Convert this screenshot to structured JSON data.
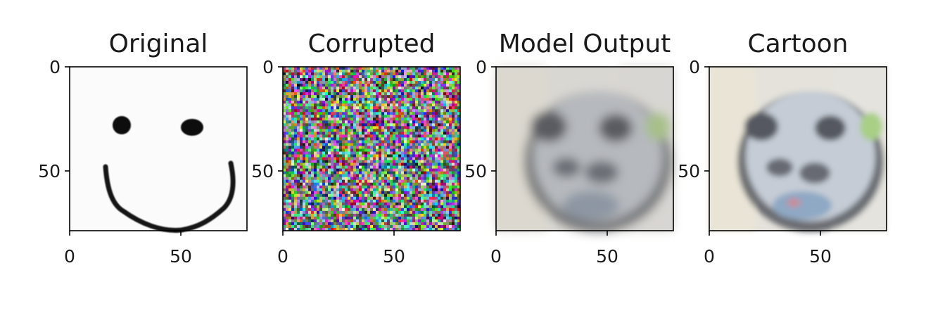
{
  "figure": {
    "panels": [
      {
        "title": "Original",
        "content": "smiley-face-drawing",
        "xticks": [
          "0",
          "50"
        ],
        "yticks": [
          "0",
          "50"
        ]
      },
      {
        "title": "Corrupted",
        "content": "random-noise",
        "xticks": [
          "0",
          "50"
        ],
        "yticks": [
          "0",
          "50"
        ]
      },
      {
        "title": "Model Output",
        "content": "blurry-dog-face",
        "xticks": [
          "0",
          "50"
        ],
        "yticks": [
          "0",
          "50"
        ]
      },
      {
        "title": "Cartoon",
        "content": "stylized-dog-face",
        "xticks": [
          "0",
          "50"
        ],
        "yticks": [
          "0",
          "50"
        ]
      }
    ]
  },
  "chart_data": {
    "type": "image-grid",
    "image_size": [
      80,
      80
    ],
    "xlim": [
      0,
      80
    ],
    "ylim": [
      80,
      0
    ],
    "tick_values": [
      0,
      50
    ],
    "panels": [
      "Original",
      "Corrupted",
      "Model Output",
      "Cartoon"
    ]
  }
}
